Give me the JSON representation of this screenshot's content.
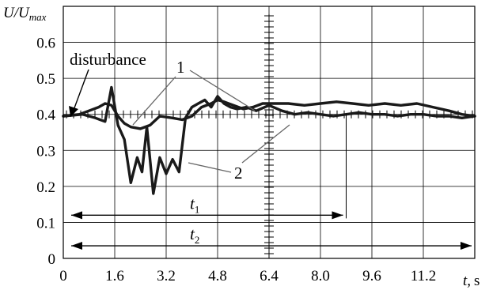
{
  "chart_data": {
    "type": "line",
    "ylabel": "U/U",
    "ylabel_sub": "max",
    "xlabel_var": "t,",
    "xlabel_unit": "s",
    "xlim": [
      0,
      12.8
    ],
    "ylim": [
      0,
      0.7
    ],
    "x_ticks": [
      0,
      1.6,
      3.2,
      4.8,
      6.4,
      8.0,
      9.6,
      11.2
    ],
    "x_tick_labels": [
      "0",
      "1.6",
      "3.2",
      "4.8",
      "6.4",
      "8.0",
      "9.6",
      "11.2"
    ],
    "y_ticks": [
      0,
      0.1,
      0.2,
      0.3,
      0.4,
      0.5,
      0.6
    ],
    "y_tick_labels": [
      "0",
      "0.1",
      "0.2",
      "0.3",
      "0.4",
      "0.5",
      "0.6"
    ],
    "grid": true,
    "series": [
      {
        "id": "upper",
        "x": [
          0,
          0.5,
          0.8,
          1.1,
          1.3,
          1.5,
          1.7,
          1.9,
          2.1,
          2.4,
          2.7,
          3.0,
          3.4,
          3.7,
          4.0,
          4.3,
          4.6,
          4.8,
          5.0,
          5.3,
          5.6,
          5.9,
          6.2,
          6.6,
          7.0,
          7.5,
          8.0,
          8.5,
          9.0,
          9.5,
          10.0,
          10.5,
          11.0,
          11.5,
          12.0,
          12.4,
          12.8
        ],
        "y": [
          0.395,
          0.4,
          0.41,
          0.42,
          0.43,
          0.425,
          0.395,
          0.375,
          0.365,
          0.36,
          0.37,
          0.395,
          0.39,
          0.385,
          0.395,
          0.42,
          0.43,
          0.44,
          0.435,
          0.425,
          0.415,
          0.42,
          0.43,
          0.43,
          0.43,
          0.425,
          0.43,
          0.435,
          0.43,
          0.425,
          0.43,
          0.425,
          0.43,
          0.42,
          0.41,
          0.4,
          0.395
        ]
      },
      {
        "id": "lower",
        "x": [
          0,
          0.6,
          1.0,
          1.3,
          1.5,
          1.7,
          1.9,
          2.1,
          2.3,
          2.45,
          2.6,
          2.8,
          3.0,
          3.2,
          3.4,
          3.6,
          3.8,
          4.0,
          4.2,
          4.4,
          4.6,
          4.8,
          5.0,
          5.2,
          5.4,
          5.7,
          6.0,
          6.4,
          6.8,
          7.2,
          7.6,
          8.0,
          8.4,
          8.8,
          9.2,
          9.6,
          10.0,
          10.4,
          10.8,
          11.2,
          11.6,
          12.0,
          12.4,
          12.8
        ],
        "y": [
          0.395,
          0.4,
          0.39,
          0.38,
          0.475,
          0.37,
          0.33,
          0.21,
          0.28,
          0.24,
          0.365,
          0.18,
          0.28,
          0.235,
          0.275,
          0.24,
          0.39,
          0.42,
          0.43,
          0.44,
          0.42,
          0.45,
          0.43,
          0.42,
          0.415,
          0.42,
          0.41,
          0.425,
          0.41,
          0.4,
          0.405,
          0.4,
          0.395,
          0.4,
          0.405,
          0.4,
          0.4,
          0.395,
          0.4,
          0.4,
          0.395,
          0.395,
          0.39,
          0.395
        ]
      }
    ],
    "annotations": {
      "disturbance": "disturbance",
      "label_1": "1",
      "label_2": "2",
      "t1_label": "t",
      "t1_sub": "1",
      "t2_label": "t",
      "t2_sub": "2",
      "t1_range": [
        0,
        8.8
      ],
      "t1_level": 0.12,
      "t2_range": [
        0,
        12.8
      ],
      "t2_level": 0.035,
      "marker_x": 6.4
    }
  }
}
